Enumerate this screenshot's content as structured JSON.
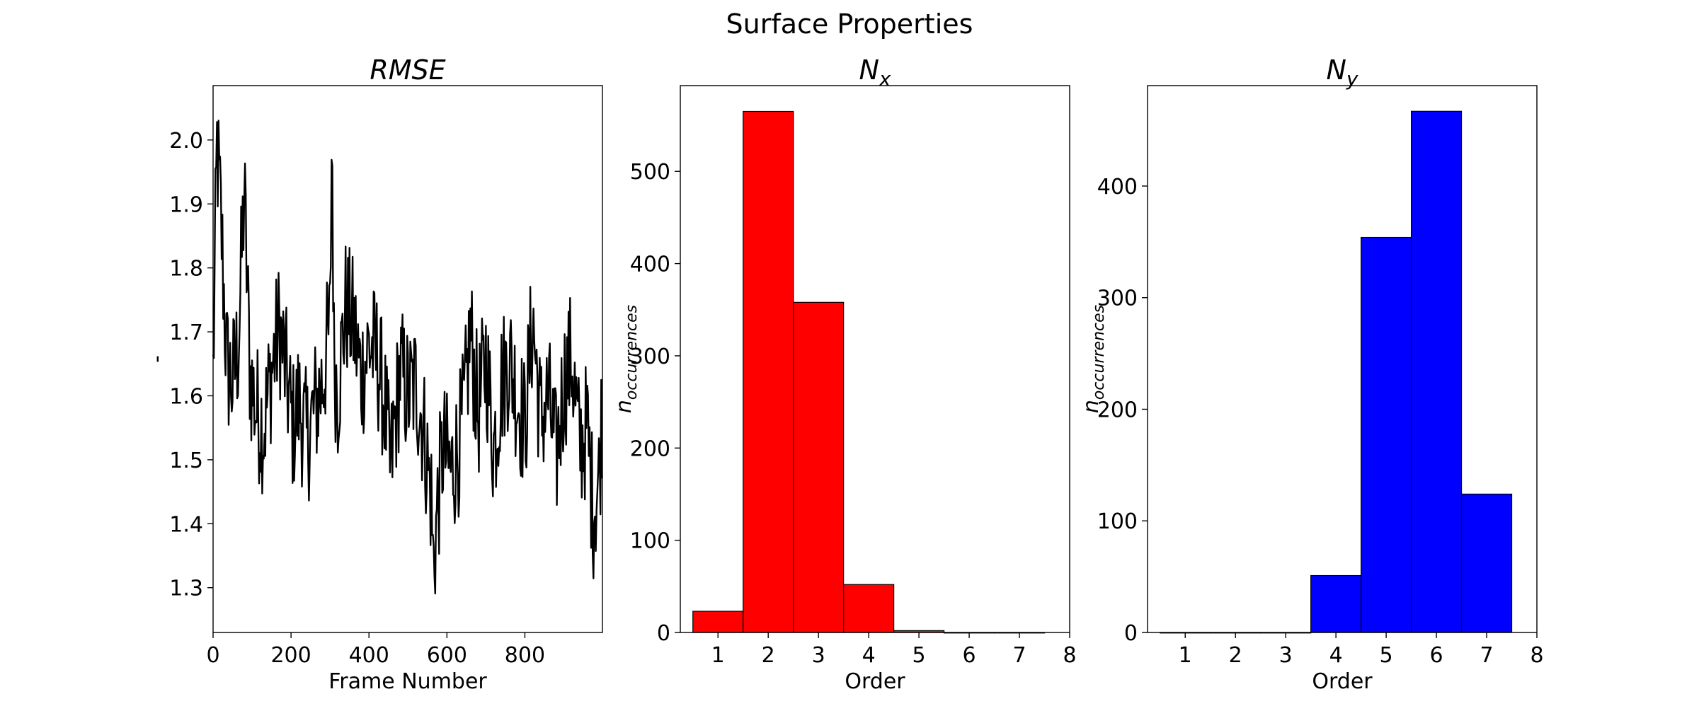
{
  "figure": {
    "suptitle": "Surface Properties"
  },
  "chart_data": [
    {
      "type": "line",
      "title": "RMSE",
      "xlabel": "Frame Number",
      "ylabel": "-",
      "xlim": [
        0,
        999
      ],
      "ylim": [
        1.23,
        2.085
      ],
      "xticks": [
        0,
        200,
        400,
        600,
        800
      ],
      "yticks": [
        1.3,
        1.4,
        1.5,
        1.6,
        1.7,
        1.8,
        1.9,
        2.0
      ],
      "xtick_labels": [
        "0",
        "200",
        "400",
        "600",
        "800"
      ],
      "ytick_labels": [
        "1.3",
        "1.4",
        "1.5",
        "1.6",
        "1.7",
        "1.8",
        "1.9",
        "2.0"
      ],
      "line_color": "#000000",
      "series_anchors": {
        "x": [
          0,
          10,
          20,
          35,
          50,
          65,
          80,
          95,
          110,
          130,
          150,
          170,
          190,
          205,
          220,
          240,
          260,
          280,
          300,
          305,
          310,
          320,
          340,
          360,
          380,
          400,
          420,
          440,
          455,
          465,
          480,
          500,
          520,
          540,
          560,
          565,
          575,
          590,
          610,
          630,
          645,
          660,
          680,
          700,
          720,
          740,
          760,
          780,
          800,
          820,
          840,
          860,
          880,
          900,
          920,
          940,
          960,
          975,
          990,
          999
        ],
        "y": [
          1.63,
          1.99,
          1.88,
          1.65,
          1.62,
          1.68,
          1.92,
          1.63,
          1.58,
          1.55,
          1.64,
          1.71,
          1.62,
          1.55,
          1.59,
          1.53,
          1.58,
          1.62,
          1.71,
          2.04,
          1.66,
          1.6,
          1.74,
          1.71,
          1.63,
          1.68,
          1.66,
          1.59,
          1.48,
          1.55,
          1.64,
          1.6,
          1.62,
          1.55,
          1.44,
          1.33,
          1.42,
          1.52,
          1.48,
          1.52,
          1.58,
          1.7,
          1.57,
          1.66,
          1.52,
          1.62,
          1.66,
          1.6,
          1.55,
          1.72,
          1.56,
          1.6,
          1.5,
          1.62,
          1.66,
          1.52,
          1.55,
          1.42,
          1.47,
          1.59
        ]
      }
    },
    {
      "type": "bar",
      "title": "N",
      "title_sub": "x",
      "xlabel": "Order",
      "ylabel": "n",
      "ylabel_sub": "occurrences",
      "xlim": [
        0.25,
        8.0
      ],
      "ylim": [
        0,
        593
      ],
      "xticks": [
        1,
        2,
        3,
        4,
        5,
        6,
        7,
        8
      ],
      "yticks": [
        0,
        100,
        200,
        300,
        400,
        500
      ],
      "xtick_labels": [
        "1",
        "2",
        "3",
        "4",
        "5",
        "6",
        "7",
        "8"
      ],
      "ytick_labels": [
        "0",
        "100",
        "200",
        "300",
        "400",
        "500"
      ],
      "bin_edges": [
        0.5,
        1.5,
        2.5,
        3.5,
        4.5,
        5.5,
        6.5,
        7.5
      ],
      "values": [
        23,
        565,
        358,
        52,
        2,
        0,
        0
      ],
      "bar_color": "#ff0000"
    },
    {
      "type": "bar",
      "title": "N",
      "title_sub": "y",
      "xlabel": "Order",
      "ylabel": "n",
      "ylabel_sub": "occurrences",
      "xlim": [
        0.25,
        8.0
      ],
      "ylim": [
        0,
        490
      ],
      "xticks": [
        1,
        2,
        3,
        4,
        5,
        6,
        7,
        8
      ],
      "yticks": [
        0,
        100,
        200,
        300,
        400
      ],
      "xtick_labels": [
        "1",
        "2",
        "3",
        "4",
        "5",
        "6",
        "7",
        "8"
      ],
      "ytick_labels": [
        "0",
        "100",
        "200",
        "300",
        "400"
      ],
      "bin_edges": [
        0.5,
        1.5,
        2.5,
        3.5,
        4.5,
        5.5,
        6.5,
        7.5
      ],
      "values": [
        0,
        0,
        0,
        51,
        354,
        467,
        124
      ],
      "bar_color": "#0000ff"
    }
  ]
}
